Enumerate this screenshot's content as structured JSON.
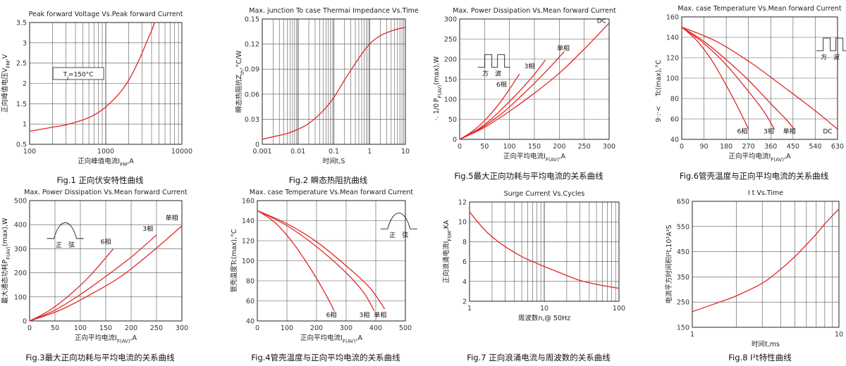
{
  "page": {
    "background": "#ffffff"
  },
  "charts": [
    {
      "id": "fig1",
      "type": "line",
      "title": "Peak forward Voltage Vs.Peak forward Current",
      "caption": "Fig.1 正向伏安特性曲线",
      "xlabel": "正向峰值电流I",
      "xlabel_sub": "FM",
      "xlabel_tail": ",A",
      "ylabel": "正向峰值电压V",
      "ylabel_sub": "FM",
      "ylabel_tail": ",V",
      "xscale": "log",
      "xlim": [
        100,
        10000
      ],
      "ylim": [
        0.5,
        3.5
      ],
      "xticks": [
        100,
        1000,
        10000
      ],
      "xtick_labels": [
        "100",
        "1000",
        "10000"
      ],
      "yticks": [
        0.5,
        1,
        1.5,
        2,
        2.5,
        3,
        3.5
      ],
      "ytick_labels": [
        "0.5",
        "1",
        "1.5",
        "2",
        "2.5",
        "3",
        "3.5"
      ],
      "grid": "log-x",
      "series": [
        {
          "name": "",
          "x": [
            100,
            200,
            300,
            500,
            700,
            1000,
            1500,
            2000,
            2500,
            3000,
            3500,
            4000,
            4400
          ],
          "y": [
            0.82,
            0.92,
            0.98,
            1.1,
            1.22,
            1.42,
            1.75,
            2.08,
            2.42,
            2.75,
            3.05,
            3.3,
            3.5
          ]
        }
      ],
      "annotations": [
        {
          "text": "T",
          "sub": "j",
          "tail": "=150°C",
          "x": 240,
          "y": 2.2,
          "boxed": true
        }
      ]
    },
    {
      "id": "fig2",
      "type": "line",
      "title": "Max. junction To case Thermai Impedance Vs.Time",
      "caption": "Fig.2  瞬态热阻抗曲线",
      "xlabel": "时间t,S",
      "xlabel_sub": "",
      "xlabel_tail": "",
      "ylabel": "瞬态热阻抗Z",
      "ylabel_sub": "th",
      "ylabel_tail": ",°C/W",
      "xscale": "log",
      "xlim": [
        0.001,
        10
      ],
      "ylim": [
        0,
        0.15
      ],
      "xticks": [
        0.001,
        0.01,
        0.1,
        1,
        10
      ],
      "xtick_labels": [
        "0.001",
        "0.01",
        "0.1",
        "1",
        "10"
      ],
      "yticks": [
        0,
        0.03,
        0.06,
        0.09,
        0.12,
        0.15
      ],
      "ytick_labels": [
        "0",
        "0.03",
        "0.06",
        "0.09",
        "0.12",
        "0.15"
      ],
      "grid": "log-x",
      "series": [
        {
          "name": "",
          "x": [
            0.001,
            0.002,
            0.005,
            0.01,
            0.02,
            0.05,
            0.1,
            0.2,
            0.5,
            1,
            2,
            5,
            10
          ],
          "y": [
            0.006,
            0.009,
            0.013,
            0.018,
            0.025,
            0.04,
            0.056,
            0.077,
            0.103,
            0.12,
            0.13,
            0.137,
            0.14
          ]
        }
      ],
      "annotations": []
    },
    {
      "id": "fig5",
      "type": "line",
      "title": "Max. Power Dissipation Vs.Mean forward Current",
      "caption": "Fig.5最大正向功耗与平均电流的关系曲线",
      "xlabel": "正向平均电流I",
      "xlabel_sub": "F(AV)",
      "xlabel_tail": ",A",
      "ylabel": "P",
      "ylabel_sub": "F(AV)",
      "ylabel_tail": "(max),W",
      "ylabel_extra": "·. 1/0",
      "xscale": "linear",
      "xlim": [
        0,
        300
      ],
      "ylim": [
        0,
        300
      ],
      "xticks": [
        0,
        50,
        100,
        150,
        200,
        250,
        300
      ],
      "xtick_labels": [
        "0",
        "50",
        "100",
        "150",
        "200",
        "250",
        "300"
      ],
      "yticks": [
        0,
        50,
        100,
        150,
        200,
        250,
        300
      ],
      "ytick_labels": [
        "0",
        "50",
        "100",
        "150",
        "200",
        "250",
        "300"
      ],
      "grid": "linear",
      "series": [
        {
          "name": "6相",
          "x": [
            0,
            20,
            40,
            60,
            80,
            100,
            120
          ],
          "y": [
            0,
            15,
            35,
            60,
            90,
            125,
            163
          ]
        },
        {
          "name": "3相",
          "x": [
            0,
            30,
            60,
            90,
            120,
            150,
            172
          ],
          "y": [
            0,
            20,
            47,
            82,
            120,
            162,
            198
          ]
        },
        {
          "name": "单相",
          "x": [
            0,
            30,
            60,
            90,
            120,
            150,
            180,
            210
          ],
          "y": [
            0,
            18,
            42,
            70,
            104,
            140,
            178,
            219
          ]
        },
        {
          "name": "DC",
          "x": [
            0,
            50,
            100,
            150,
            200,
            250,
            300
          ],
          "y": [
            0,
            30,
            70,
            115,
            165,
            225,
            290
          ]
        }
      ],
      "annotations": [
        {
          "text": "6相",
          "x": 84,
          "y": 132
        },
        {
          "text": "3相",
          "x": 140,
          "y": 177
        },
        {
          "text": "单相",
          "x": 208,
          "y": 222
        },
        {
          "text": "DC",
          "x": 285,
          "y": 290
        },
        {
          "text": "方　波",
          "x": 42,
          "y": 190,
          "wave": "square"
        }
      ]
    },
    {
      "id": "fig6",
      "type": "line",
      "title": "Max. case Temperature Vs.Mean forward Current",
      "caption": "Fig.6管壳温度与正向平均电流的关系曲线",
      "xlabel": "正向平均电流I",
      "xlabel_sub": "F(AV)",
      "xlabel_tail": ",A",
      "ylabel": "Tc(max),°C",
      "ylabel_sub": "",
      "ylabel_tail": "",
      "ylabel_extra": "9·:·<",
      "xscale": "linear",
      "xlim": [
        0,
        630
      ],
      "ylim": [
        40,
        160
      ],
      "xticks": [
        0,
        90,
        180,
        270,
        360,
        450,
        540,
        630
      ],
      "xtick_labels": [
        "0",
        "90",
        "180",
        "270",
        "360",
        "450",
        "540",
        "630"
      ],
      "yticks": [
        40,
        60,
        80,
        100,
        120,
        140,
        160
      ],
      "ytick_labels": [
        "40",
        "60",
        "80",
        "100",
        "120",
        "140",
        "160"
      ],
      "grid": "linear",
      "series": [
        {
          "name": "6相",
          "x": [
            0,
            60,
            120,
            180,
            230,
            270
          ],
          "y": [
            150,
            137,
            118,
            93,
            70,
            50
          ]
        },
        {
          "name": "3相",
          "x": [
            0,
            90,
            180,
            270,
            330,
            375
          ],
          "y": [
            150,
            134,
            113,
            87,
            68,
            50
          ]
        },
        {
          "name": "单相",
          "x": [
            0,
            90,
            180,
            270,
            360,
            420,
            455
          ],
          "y": [
            150,
            136,
            118,
            98,
            75,
            60,
            50
          ]
        },
        {
          "name": "DC",
          "x": [
            0,
            140,
            280,
            420,
            540,
            630
          ],
          "y": [
            150,
            136,
            115,
            90,
            68,
            50
          ]
        }
      ],
      "annotations": [
        {
          "text": "6相",
          "x": 245,
          "y": 46
        },
        {
          "text": "3相",
          "x": 352,
          "y": 46
        },
        {
          "text": "单相",
          "x": 435,
          "y": 46
        },
        {
          "text": "DC",
          "x": 590,
          "y": 46
        },
        {
          "text": "方　波",
          "x": 555,
          "y": 131,
          "wave": "square"
        }
      ]
    },
    {
      "id": "fig3",
      "type": "line",
      "title": "Max. Power Dissipation Vs.Mean forward Current",
      "caption": "Fig.3最大正向功耗与平均电流的关系曲线",
      "xlabel": "正向平均电流I",
      "xlabel_sub": "F(AV)",
      "xlabel_tail": ",A",
      "ylabel": "最大通态功耗P",
      "ylabel_sub": "F(AV)",
      "ylabel_tail": "(max),W",
      "xscale": "linear",
      "xlim": [
        0,
        300
      ],
      "ylim": [
        0,
        500
      ],
      "xticks": [
        0,
        50,
        100,
        150,
        200,
        250,
        300
      ],
      "xtick_labels": [
        "0",
        "50",
        "100",
        "150",
        "200",
        "250",
        "300"
      ],
      "yticks": [
        0,
        100,
        200,
        300,
        400,
        500
      ],
      "ytick_labels": [
        "0",
        "100",
        "200",
        "300",
        "400",
        "500"
      ],
      "grid": "linear",
      "series": [
        {
          "name": "6相",
          "x": [
            0,
            40,
            80,
            120,
            165
          ],
          "y": [
            0,
            45,
            110,
            190,
            300
          ]
        },
        {
          "name": "3相",
          "x": [
            0,
            50,
            100,
            150,
            200,
            250
          ],
          "y": [
            0,
            45,
            110,
            185,
            265,
            357
          ]
        },
        {
          "name": "单相",
          "x": [
            0,
            60,
            120,
            180,
            240,
            300
          ],
          "y": [
            0,
            45,
            110,
            185,
            285,
            395
          ]
        }
      ],
      "annotations": [
        {
          "text": "6相",
          "x": 150,
          "y": 320
        },
        {
          "text": "3相",
          "x": 233,
          "y": 375
        },
        {
          "text": "单相",
          "x": 280,
          "y": 420
        },
        {
          "text": "正　弦",
          "x": 48,
          "y": 360,
          "wave": "sine"
        }
      ]
    },
    {
      "id": "fig4",
      "type": "line",
      "title": "Max. case Temperature Vs.Mean forward Current",
      "caption": "Fig.4管壳温度与正向平均电流的关系曲线",
      "xlabel": "正向平均电流I",
      "xlabel_sub": "F(AV)",
      "xlabel_tail": ",A",
      "ylabel": "管壳温度Tc(max),°C",
      "ylabel_sub": "",
      "ylabel_tail": "",
      "xscale": "linear",
      "xlim": [
        0,
        500
      ],
      "ylim": [
        40,
        160
      ],
      "xticks": [
        0,
        100,
        200,
        300,
        400,
        500
      ],
      "xtick_labels": [
        "0",
        "100",
        "200",
        "300",
        "400",
        "500"
      ],
      "yticks": [
        40,
        60,
        80,
        100,
        120,
        140,
        160
      ],
      "ytick_labels": [
        "40",
        "60",
        "80",
        "100",
        "120",
        "140",
        "160"
      ],
      "grid": "linear",
      "series": [
        {
          "name": "6相",
          "x": [
            0,
            60,
            120,
            180,
            230,
            260
          ],
          "y": [
            150,
            138,
            118,
            92,
            67,
            50
          ]
        },
        {
          "name": "3相",
          "x": [
            0,
            100,
            200,
            300,
            360,
            395
          ],
          "y": [
            150,
            135,
            114,
            88,
            68,
            50
          ]
        },
        {
          "name": "单相",
          "x": [
            0,
            100,
            200,
            300,
            380,
            430
          ],
          "y": [
            150,
            137,
            119,
            95,
            73,
            52
          ]
        }
      ],
      "annotations": [
        {
          "text": "6相",
          "x": 250,
          "y": 44
        },
        {
          "text": "3相",
          "x": 362,
          "y": 44
        },
        {
          "text": "单相",
          "x": 415,
          "y": 44
        },
        {
          "text": "正　弦",
          "x": 440,
          "y": 136,
          "wave": "sine"
        }
      ]
    },
    {
      "id": "fig7",
      "type": "line",
      "title": "Surge Current Vs.Cycles",
      "caption": "Fig.7 正向浪涌电流与周波数的关系曲线",
      "xlabel": "周波数n,@ 50Hz",
      "xlabel_sub": "",
      "xlabel_tail": "",
      "ylabel": "正向浪涌电流I",
      "ylabel_sub": "FSM",
      "ylabel_tail": ",KA",
      "xscale": "log",
      "xlim": [
        1,
        100
      ],
      "ylim": [
        2,
        12
      ],
      "xticks": [
        1,
        10,
        100
      ],
      "xtick_labels": [
        "1",
        "10",
        "100"
      ],
      "yticks": [
        2,
        4,
        6,
        8,
        10,
        12
      ],
      "ytick_labels": [
        "2",
        "4",
        "6",
        "8",
        "10",
        "12"
      ],
      "grid": "log-x",
      "series": [
        {
          "name": "",
          "x": [
            1,
            1.5,
            2,
            3,
            5,
            7,
            10,
            20,
            30,
            50,
            70,
            100
          ],
          "y": [
            11,
            9.4,
            8.5,
            7.5,
            6.5,
            6.0,
            5.5,
            4.6,
            4.1,
            3.7,
            3.5,
            3.3
          ]
        }
      ],
      "annotations": []
    },
    {
      "id": "fig8",
      "type": "line",
      "title": "I t Vs.Time",
      "caption": "Fig.8 I²t特性曲线",
      "xlabel": "时间t,ms",
      "xlabel_sub": "",
      "xlabel_tail": "",
      "ylabel": "电流平方时间积I²t,10³A²S",
      "ylabel_sub": "",
      "ylabel_tail": "",
      "xscale": "log",
      "xlim": [
        1,
        10
      ],
      "ylim": [
        150,
        650
      ],
      "xticks": [
        1,
        10
      ],
      "xtick_labels": [
        "1",
        "10"
      ],
      "yticks": [
        150,
        250,
        350,
        450,
        550,
        650
      ],
      "ytick_labels": [
        "150",
        "250",
        "350",
        "450",
        "550",
        "650"
      ],
      "grid": "log-x",
      "series": [
        {
          "name": "",
          "x": [
            1,
            1.5,
            2,
            3,
            4,
            5,
            6,
            7,
            8,
            9,
            10
          ],
          "y": [
            212,
            248,
            275,
            325,
            380,
            430,
            478,
            520,
            560,
            592,
            620
          ]
        }
      ],
      "annotations": []
    }
  ]
}
